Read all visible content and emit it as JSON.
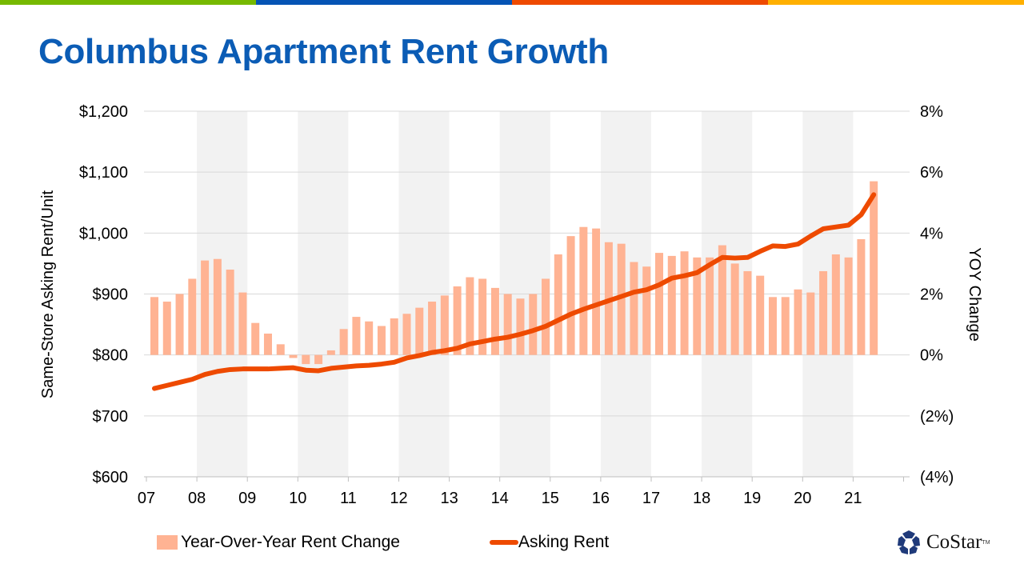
{
  "colors": {
    "topbar": [
      "#76b900",
      "#0654b4",
      "#ee4a00",
      "#ffb000"
    ],
    "title": "#0b5cb5",
    "bar": "#ffb393",
    "line": "#ee4a00",
    "negative_tick": "#e00000",
    "band": "#f2f2f2"
  },
  "title": "Columbus Apartment Rent Growth",
  "chart_data": {
    "type": "bar+line",
    "title": "Columbus Apartment Rent Growth",
    "ylabel": "Same-Store Asking Rent/Unit",
    "y2label": "YOY Change",
    "ylim": [
      600,
      1200
    ],
    "y2lim": [
      -4,
      8
    ],
    "yticks": [
      "$600",
      "$700",
      "$800",
      "$900",
      "$1,000",
      "$1,100",
      "$1,200"
    ],
    "y2ticks": [
      "(4%)",
      "(2%)",
      "0%",
      "2%",
      "4%",
      "6%",
      "8%"
    ],
    "xticks": [
      "07",
      "08",
      "09",
      "10",
      "11",
      "12",
      "13",
      "14",
      "15",
      "16",
      "17",
      "18",
      "19",
      "20",
      "21"
    ],
    "grid": true,
    "shaded_years": [
      "08",
      "10",
      "12",
      "14",
      "16",
      "18",
      "20"
    ],
    "legend_position": "bottom",
    "series": [
      {
        "name": "Year-Over-Year Rent Change",
        "type": "bar",
        "axis": "right",
        "unit": "%",
        "values": [
          1.9,
          1.75,
          2.0,
          2.5,
          3.1,
          3.15,
          2.8,
          2.05,
          1.05,
          0.7,
          0.35,
          -0.1,
          -0.3,
          -0.3,
          0.15,
          0.85,
          1.25,
          1.1,
          0.95,
          1.2,
          1.35,
          1.55,
          1.75,
          1.95,
          2.25,
          2.55,
          2.5,
          2.2,
          2.0,
          1.85,
          2.0,
          2.5,
          3.3,
          3.9,
          4.2,
          4.15,
          3.7,
          3.65,
          3.05,
          2.9,
          3.35,
          3.25,
          3.4,
          3.2,
          3.2,
          3.6,
          3.0,
          2.75,
          2.6,
          1.9,
          1.9,
          2.15,
          2.05,
          2.75,
          3.3,
          3.2,
          3.8,
          5.7
        ]
      },
      {
        "name": "Asking Rent",
        "type": "line",
        "axis": "left",
        "unit": "$",
        "values": [
          745,
          750,
          755,
          760,
          768,
          773,
          776,
          777,
          777,
          777,
          778,
          779,
          775,
          774,
          778,
          780,
          782,
          783,
          785,
          788,
          795,
          799,
          804,
          807,
          811,
          818,
          822,
          826,
          829,
          834,
          840,
          847,
          857,
          867,
          875,
          882,
          889,
          896,
          903,
          907,
          915,
          926,
          930,
          935,
          948,
          960,
          959,
          960,
          970,
          979,
          978,
          982,
          995,
          1007,
          1010,
          1013,
          1030,
          1063
        ]
      }
    ],
    "x_start": "2007 Q1",
    "x_end": "2021 Q2",
    "frequency": "quarterly"
  },
  "logo": {
    "text": "CoStar",
    "tm": "TM"
  }
}
